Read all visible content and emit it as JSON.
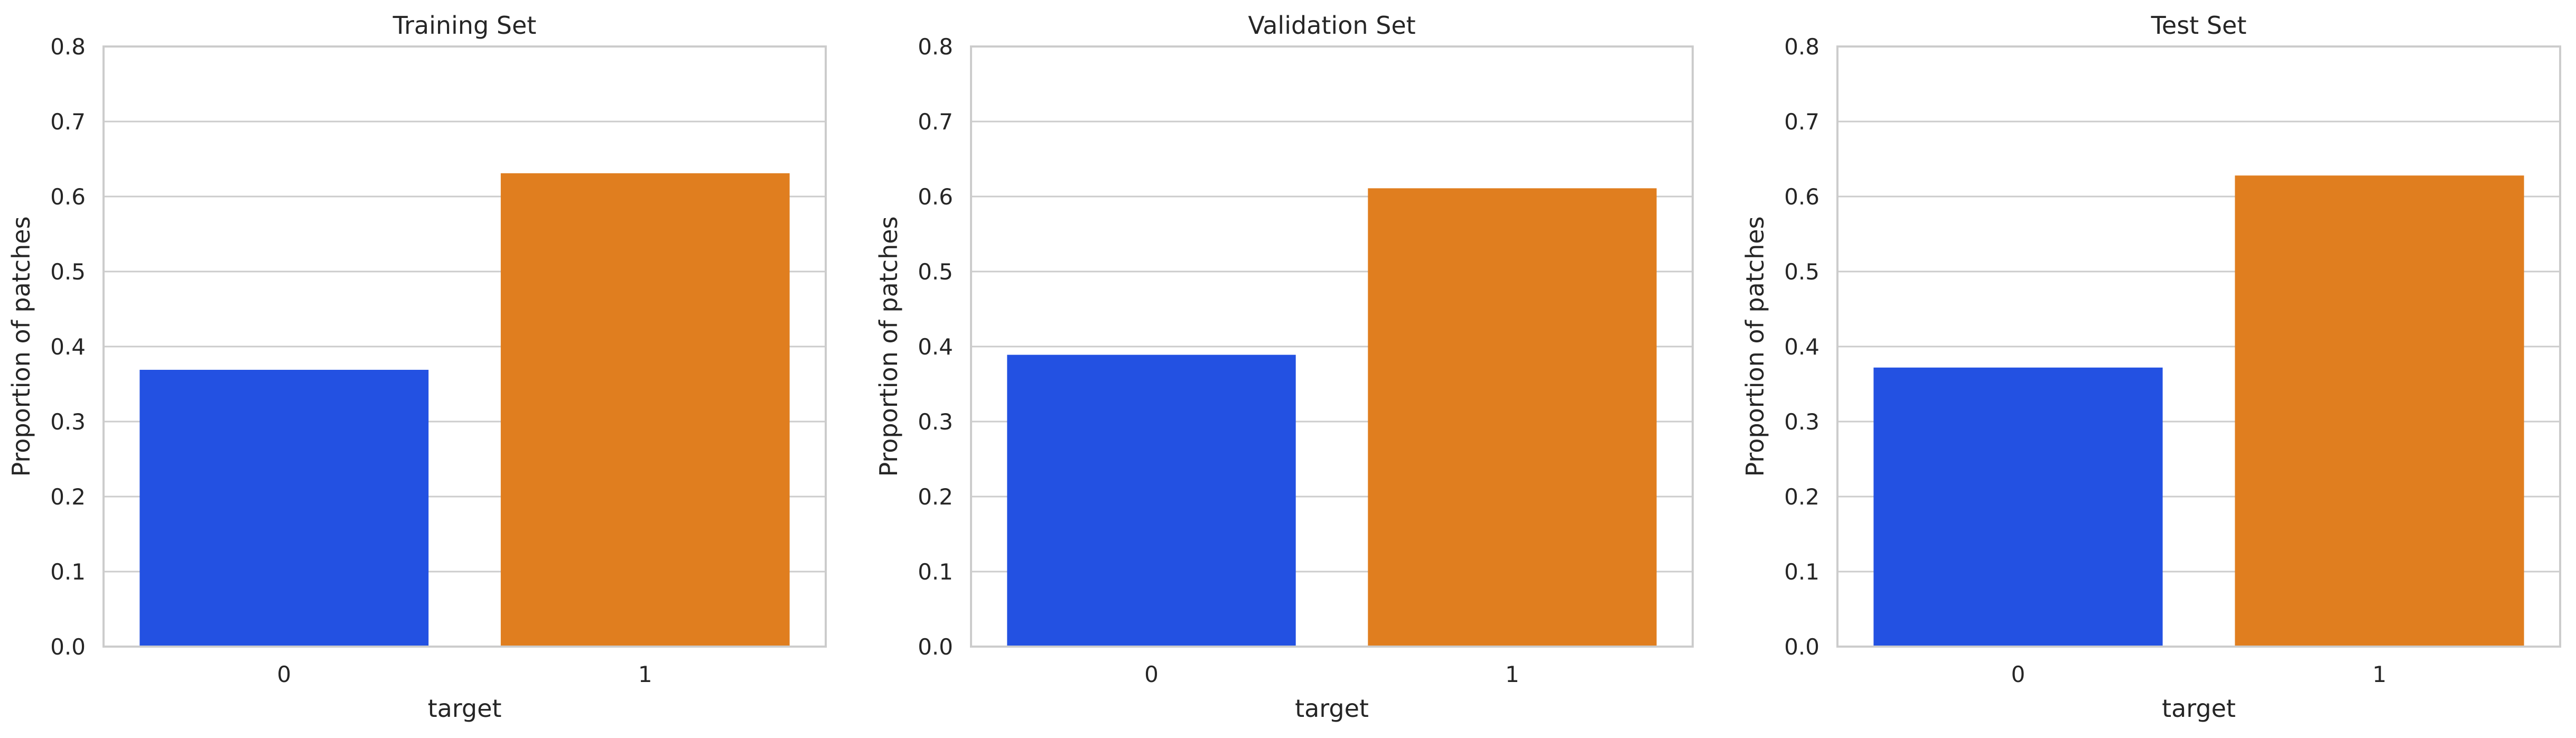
{
  "chart_data": [
    {
      "type": "bar",
      "title": "Training Set",
      "xlabel": "target",
      "ylabel": "Proportion of patches",
      "categories": [
        "0",
        "1"
      ],
      "values": [
        0.369,
        0.631
      ],
      "ylim": [
        0,
        0.8
      ],
      "yticks": [
        "0.0",
        "0.1",
        "0.2",
        "0.3",
        "0.4",
        "0.5",
        "0.6",
        "0.7",
        "0.8"
      ],
      "grid": "horizontal",
      "colors": [
        "#2351e2",
        "#e07e1f"
      ]
    },
    {
      "type": "bar",
      "title": "Validation Set",
      "xlabel": "target",
      "ylabel": "Proportion of patches",
      "categories": [
        "0",
        "1"
      ],
      "values": [
        0.389,
        0.611
      ],
      "ylim": [
        0,
        0.8
      ],
      "yticks": [
        "0.0",
        "0.1",
        "0.2",
        "0.3",
        "0.4",
        "0.5",
        "0.6",
        "0.7",
        "0.8"
      ],
      "grid": "horizontal",
      "colors": [
        "#2351e2",
        "#e07e1f"
      ]
    },
    {
      "type": "bar",
      "title": "Test Set",
      "xlabel": "target",
      "ylabel": "Proportion of patches",
      "categories": [
        "0",
        "1"
      ],
      "values": [
        0.372,
        0.628
      ],
      "ylim": [
        0,
        0.8
      ],
      "yticks": [
        "0.0",
        "0.1",
        "0.2",
        "0.3",
        "0.4",
        "0.5",
        "0.6",
        "0.7",
        "0.8"
      ],
      "grid": "horizontal",
      "colors": [
        "#2351e2",
        "#e07e1f"
      ]
    }
  ]
}
